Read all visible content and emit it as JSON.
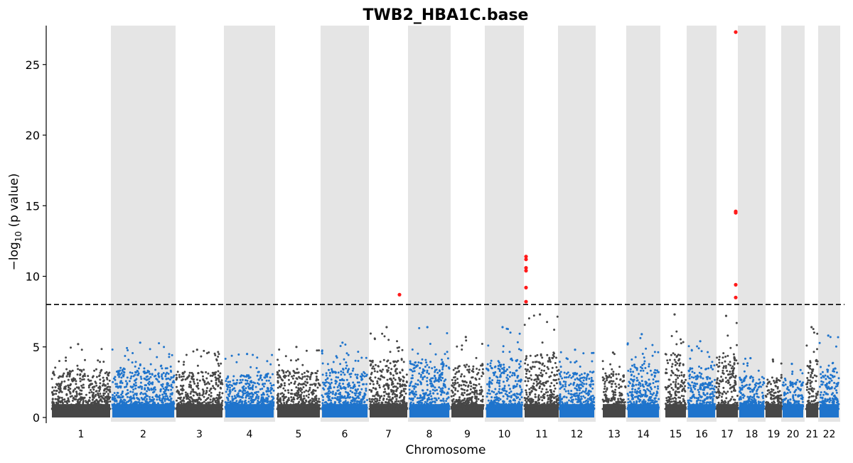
{
  "chart_data": {
    "type": "scatter",
    "title": "TWB2_HBA1C.base",
    "xlabel": "Chromosome",
    "ylabel_main": "−log",
    "ylabel_sub": "10",
    "ylabel_rest": " (p value)",
    "ylim": [
      0,
      27.8
    ],
    "yticks": [
      0,
      5,
      10,
      15,
      20,
      25
    ],
    "threshold": 8.0,
    "colors": {
      "dark": "#474747",
      "blue": "#1f74cc",
      "significant": "#ff1a1a",
      "band": "#e5e5e5",
      "threshold_line": "#000000"
    },
    "chromosomes": [
      {
        "label": "1",
        "color": "dark",
        "band": false,
        "peak": 5.2
      },
      {
        "label": "2",
        "color": "blue",
        "band": true,
        "peak": 5.3
      },
      {
        "label": "3",
        "color": "dark",
        "band": false,
        "peak": 4.8
      },
      {
        "label": "4",
        "color": "blue",
        "band": true,
        "peak": 4.5
      },
      {
        "label": "5",
        "color": "dark",
        "band": false,
        "peak": 5.0
      },
      {
        "label": "6",
        "color": "blue",
        "band": true,
        "peak": 5.3
      },
      {
        "label": "7",
        "color": "dark",
        "band": false,
        "peak": 6.4
      },
      {
        "label": "8",
        "color": "blue",
        "band": true,
        "peak": 6.4
      },
      {
        "label": "9",
        "color": "dark",
        "band": false,
        "peak": 5.7
      },
      {
        "label": "10",
        "color": "blue",
        "band": true,
        "peak": 6.4
      },
      {
        "label": "11",
        "color": "dark",
        "band": false,
        "peak": 7.3
      },
      {
        "label": "12",
        "color": "blue",
        "band": true,
        "peak": 4.8
      },
      {
        "label": "13",
        "color": "dark",
        "band": false,
        "peak": 4.6
      },
      {
        "label": "14",
        "color": "blue",
        "band": true,
        "peak": 5.9
      },
      {
        "label": "15",
        "color": "dark",
        "band": false,
        "peak": 7.3
      },
      {
        "label": "16",
        "color": "blue",
        "band": true,
        "peak": 5.4
      },
      {
        "label": "17",
        "color": "dark",
        "band": false,
        "peak": 7.2
      },
      {
        "label": "18",
        "color": "blue",
        "band": true,
        "peak": 4.2
      },
      {
        "label": "19",
        "color": "dark",
        "band": false,
        "peak": 4.1
      },
      {
        "label": "20",
        "color": "blue",
        "band": true,
        "peak": 3.8
      },
      {
        "label": "21",
        "color": "dark",
        "band": false,
        "peak": 6.4
      },
      {
        "label": "22",
        "color": "blue",
        "band": true,
        "peak": 5.8
      }
    ],
    "significant_points": [
      {
        "chrom": "7",
        "y": 8.7
      },
      {
        "chrom": "11",
        "y": 11.4
      },
      {
        "chrom": "11",
        "y": 11.2
      },
      {
        "chrom": "11",
        "y": 10.6
      },
      {
        "chrom": "11",
        "y": 10.4
      },
      {
        "chrom": "11",
        "y": 9.2
      },
      {
        "chrom": "11",
        "y": 8.2
      },
      {
        "chrom": "17",
        "y": 27.3
      },
      {
        "chrom": "17",
        "y": 14.6
      },
      {
        "chrom": "17",
        "y": 14.5
      },
      {
        "chrom": "17",
        "y": 9.4
      },
      {
        "chrom": "17",
        "y": 8.5
      }
    ]
  }
}
